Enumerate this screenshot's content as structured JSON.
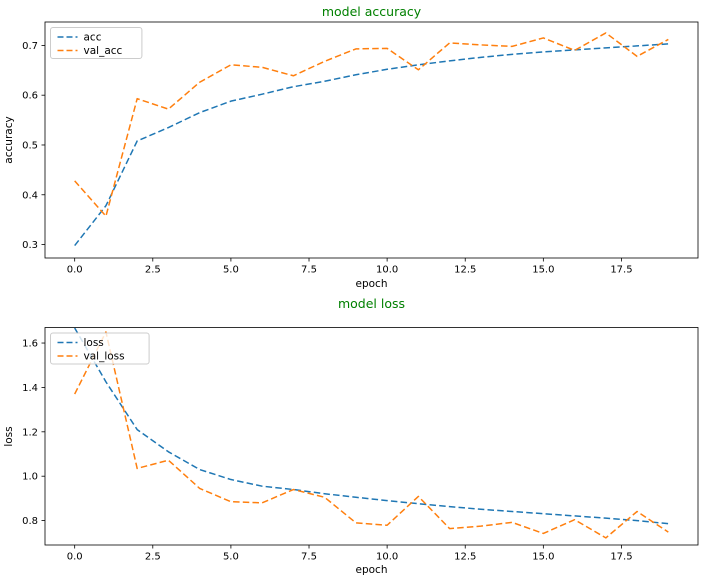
{
  "figure": {
    "background": "#ffffff",
    "spine_color": "#000000",
    "tick_color": "#000000"
  },
  "chart_data": [
    {
      "type": "line",
      "title": "model accuracy",
      "title_color": "#008000",
      "xlabel": "epoch",
      "ylabel": "accuracy",
      "grid": false,
      "legend": {
        "position": "upper left"
      },
      "xlim": [
        -0.95,
        19.95
      ],
      "ylim": [
        0.273,
        0.747
      ],
      "xticks": [
        0,
        2.5,
        5,
        7.5,
        10,
        12.5,
        15,
        17.5
      ],
      "xtick_labels": [
        "0.0",
        "2.5",
        "5.0",
        "7.5",
        "10.0",
        "12.5",
        "15.0",
        "17.5"
      ],
      "yticks": [
        0.3,
        0.4,
        0.5,
        0.6,
        0.7
      ],
      "ytick_labels": [
        "0.3",
        "0.4",
        "0.5",
        "0.6",
        "0.7"
      ],
      "x": [
        0,
        1,
        2,
        3,
        4,
        5,
        6,
        7,
        8,
        9,
        10,
        11,
        12,
        13,
        14,
        15,
        16,
        17,
        18,
        19
      ],
      "series": [
        {
          "name": "acc",
          "color": "#1f77b4",
          "linestyle": "dashed",
          "values": [
            0.298,
            0.378,
            0.508,
            0.535,
            0.565,
            0.588,
            0.602,
            0.617,
            0.628,
            0.641,
            0.652,
            0.661,
            0.669,
            0.676,
            0.682,
            0.687,
            0.691,
            0.695,
            0.699,
            0.703
          ]
        },
        {
          "name": "val_acc",
          "color": "#ff7f0e",
          "linestyle": "dashed",
          "values": [
            0.428,
            0.357,
            0.593,
            0.572,
            0.626,
            0.661,
            0.656,
            0.639,
            0.668,
            0.693,
            0.694,
            0.651,
            0.705,
            0.701,
            0.698,
            0.715,
            0.69,
            0.725,
            0.678,
            0.712
          ]
        }
      ]
    },
    {
      "type": "line",
      "title": "model loss",
      "title_color": "#008000",
      "xlabel": "epoch",
      "ylabel": "loss",
      "grid": false,
      "legend": {
        "position": "upper left"
      },
      "xlim": [
        -0.95,
        19.95
      ],
      "ylim": [
        0.69,
        1.67
      ],
      "xticks": [
        0,
        2.5,
        5,
        7.5,
        10,
        12.5,
        15,
        17.5
      ],
      "xtick_labels": [
        "0.0",
        "2.5",
        "5.0",
        "7.5",
        "10.0",
        "12.5",
        "15.0",
        "17.5"
      ],
      "yticks": [
        0.8,
        1.0,
        1.2,
        1.4,
        1.6
      ],
      "ytick_labels": [
        "0.8",
        "1.0",
        "1.2",
        "1.4",
        "1.6"
      ],
      "x": [
        0,
        1,
        2,
        3,
        4,
        5,
        6,
        7,
        8,
        9,
        10,
        11,
        12,
        13,
        14,
        15,
        16,
        17,
        18,
        19
      ],
      "series": [
        {
          "name": "loss",
          "color": "#1f77b4",
          "linestyle": "dashed",
          "values": [
            1.668,
            1.425,
            1.21,
            1.11,
            1.03,
            0.985,
            0.955,
            0.94,
            0.921,
            0.905,
            0.89,
            0.876,
            0.863,
            0.851,
            0.841,
            0.831,
            0.821,
            0.811,
            0.8,
            0.786
          ]
        },
        {
          "name": "val_loss",
          "color": "#ff7f0e",
          "linestyle": "dashed",
          "values": [
            1.37,
            1.65,
            1.035,
            1.072,
            0.945,
            0.885,
            0.88,
            0.94,
            0.905,
            0.79,
            0.779,
            0.909,
            0.764,
            0.775,
            0.792,
            0.742,
            0.804,
            0.722,
            0.841,
            0.748
          ]
        }
      ]
    }
  ]
}
